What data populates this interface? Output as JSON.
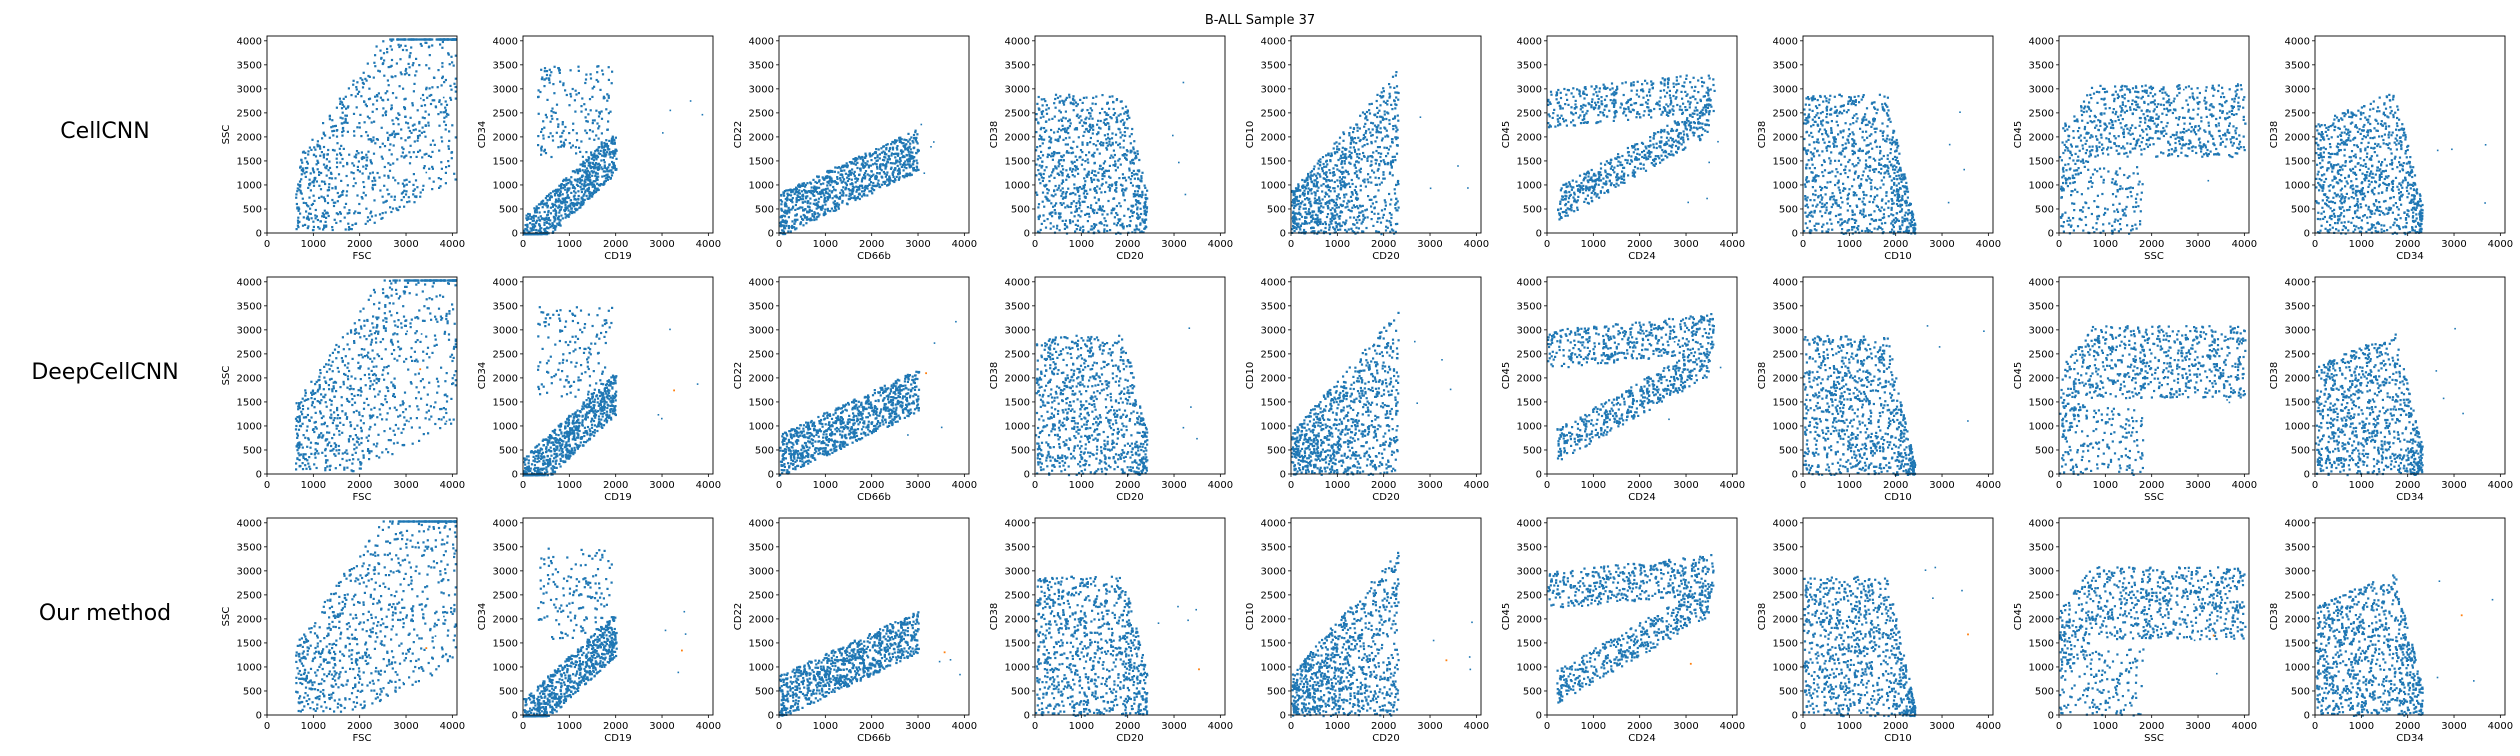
{
  "title": "B-ALL Sample 37",
  "row_labels": [
    "CellCNN",
    "DeepCellCNN",
    "Our method"
  ],
  "colors": {
    "points": "#1f77b4",
    "outliers": "#ff7f0e",
    "axes": "#000000"
  },
  "axis_ticks": [
    "0",
    "500",
    "1000",
    "1500",
    "2000",
    "2500",
    "3000",
    "3500",
    "4000"
  ],
  "x_ticks": [
    "0",
    "1000",
    "2000",
    "3000",
    "4000"
  ],
  "chart_data": [
    {
      "type": "scatter",
      "row": "CellCNN",
      "xlabel": "FSC",
      "ylabel": "SSC",
      "xlim": [
        0,
        4100
      ],
      "ylim": [
        0,
        4100
      ],
      "shape": "fsc"
    },
    {
      "type": "scatter",
      "row": "CellCNN",
      "xlabel": "CD19",
      "ylabel": "CD34",
      "xlim": [
        0,
        4100
      ],
      "ylim": [
        0,
        4100
      ],
      "shape": "cd19"
    },
    {
      "type": "scatter",
      "row": "CellCNN",
      "xlabel": "CD66b",
      "ylabel": "CD22",
      "xlim": [
        0,
        4100
      ],
      "ylim": [
        0,
        4100
      ],
      "shape": "cd66b"
    },
    {
      "type": "scatter",
      "row": "CellCNN",
      "xlabel": "CD20",
      "ylabel": "CD38",
      "xlim": [
        0,
        4100
      ],
      "ylim": [
        0,
        4100
      ],
      "shape": "cd20_38"
    },
    {
      "type": "scatter",
      "row": "CellCNN",
      "xlabel": "CD20",
      "ylabel": "CD10",
      "xlim": [
        0,
        4100
      ],
      "ylim": [
        0,
        4100
      ],
      "shape": "cd20_10"
    },
    {
      "type": "scatter",
      "row": "CellCNN",
      "xlabel": "CD24",
      "ylabel": "CD45",
      "xlim": [
        0,
        4100
      ],
      "ylim": [
        0,
        4100
      ],
      "shape": "cd24"
    },
    {
      "type": "scatter",
      "row": "CellCNN",
      "xlabel": "CD10",
      "ylabel": "CD38",
      "xlim": [
        0,
        4100
      ],
      "ylim": [
        0,
        4100
      ],
      "shape": "cd10"
    },
    {
      "type": "scatter",
      "row": "CellCNN",
      "xlabel": "SSC",
      "ylabel": "CD45",
      "xlim": [
        0,
        4100
      ],
      "ylim": [
        0,
        4100
      ],
      "shape": "ssc"
    },
    {
      "type": "scatter",
      "row": "CellCNN",
      "xlabel": "CD34",
      "ylabel": "CD38",
      "xlim": [
        0,
        4100
      ],
      "ylim": [
        0,
        4100
      ],
      "shape": "cd34"
    },
    {
      "type": "scatter",
      "row": "DeepCellCNN",
      "xlabel": "FSC",
      "ylabel": "SSC",
      "xlim": [
        0,
        4100
      ],
      "ylim": [
        0,
        4100
      ],
      "shape": "fsc"
    },
    {
      "type": "scatter",
      "row": "DeepCellCNN",
      "xlabel": "CD19",
      "ylabel": "CD34",
      "xlim": [
        0,
        4100
      ],
      "ylim": [
        0,
        4100
      ],
      "shape": "cd19"
    },
    {
      "type": "scatter",
      "row": "DeepCellCNN",
      "xlabel": "CD66b",
      "ylabel": "CD22",
      "xlim": [
        0,
        4100
      ],
      "ylim": [
        0,
        4100
      ],
      "shape": "cd66b"
    },
    {
      "type": "scatter",
      "row": "DeepCellCNN",
      "xlabel": "CD20",
      "ylabel": "CD38",
      "xlim": [
        0,
        4100
      ],
      "ylim": [
        0,
        4100
      ],
      "shape": "cd20_38"
    },
    {
      "type": "scatter",
      "row": "DeepCellCNN",
      "xlabel": "CD20",
      "ylabel": "CD10",
      "xlim": [
        0,
        4100
      ],
      "ylim": [
        0,
        4100
      ],
      "shape": "cd20_10"
    },
    {
      "type": "scatter",
      "row": "DeepCellCNN",
      "xlabel": "CD24",
      "ylabel": "CD45",
      "xlim": [
        0,
        4100
      ],
      "ylim": [
        0,
        4100
      ],
      "shape": "cd24"
    },
    {
      "type": "scatter",
      "row": "DeepCellCNN",
      "xlabel": "CD10",
      "ylabel": "CD38",
      "xlim": [
        0,
        4100
      ],
      "ylim": [
        0,
        4100
      ],
      "shape": "cd10"
    },
    {
      "type": "scatter",
      "row": "DeepCellCNN",
      "xlabel": "SSC",
      "ylabel": "CD45",
      "xlim": [
        0,
        4100
      ],
      "ylim": [
        0,
        4100
      ],
      "shape": "ssc"
    },
    {
      "type": "scatter",
      "row": "DeepCellCNN",
      "xlabel": "CD34",
      "ylabel": "CD38",
      "xlim": [
        0,
        4100
      ],
      "ylim": [
        0,
        4100
      ],
      "shape": "cd34"
    },
    {
      "type": "scatter",
      "row": "Our method",
      "xlabel": "FSC",
      "ylabel": "SSC",
      "xlim": [
        0,
        4100
      ],
      "ylim": [
        0,
        4100
      ],
      "shape": "fsc"
    },
    {
      "type": "scatter",
      "row": "Our method",
      "xlabel": "CD19",
      "ylabel": "CD34",
      "xlim": [
        0,
        4100
      ],
      "ylim": [
        0,
        4100
      ],
      "shape": "cd19"
    },
    {
      "type": "scatter",
      "row": "Our method",
      "xlabel": "CD66b",
      "ylabel": "CD22",
      "xlim": [
        0,
        4100
      ],
      "ylim": [
        0,
        4100
      ],
      "shape": "cd66b"
    },
    {
      "type": "scatter",
      "row": "Our method",
      "xlabel": "CD20",
      "ylabel": "CD38",
      "xlim": [
        0,
        4100
      ],
      "ylim": [
        0,
        4100
      ],
      "shape": "cd20_38"
    },
    {
      "type": "scatter",
      "row": "Our method",
      "xlabel": "CD20",
      "ylabel": "CD10",
      "xlim": [
        0,
        4100
      ],
      "ylim": [
        0,
        4100
      ],
      "shape": "cd20_10"
    },
    {
      "type": "scatter",
      "row": "Our method",
      "xlabel": "CD24",
      "ylabel": "CD45",
      "xlim": [
        0,
        4100
      ],
      "ylim": [
        0,
        4100
      ],
      "shape": "cd24"
    },
    {
      "type": "scatter",
      "row": "Our method",
      "xlabel": "CD10",
      "ylabel": "CD38",
      "xlim": [
        0,
        4100
      ],
      "ylim": [
        0,
        4100
      ],
      "shape": "cd10"
    },
    {
      "type": "scatter",
      "row": "Our method",
      "xlabel": "SSC",
      "ylabel": "CD45",
      "xlim": [
        0,
        4100
      ],
      "ylim": [
        0,
        4100
      ],
      "shape": "ssc"
    },
    {
      "type": "scatter",
      "row": "Our method",
      "xlabel": "CD34",
      "ylabel": "CD38",
      "xlim": [
        0,
        4100
      ],
      "ylim": [
        0,
        4100
      ],
      "shape": "cd34"
    }
  ]
}
